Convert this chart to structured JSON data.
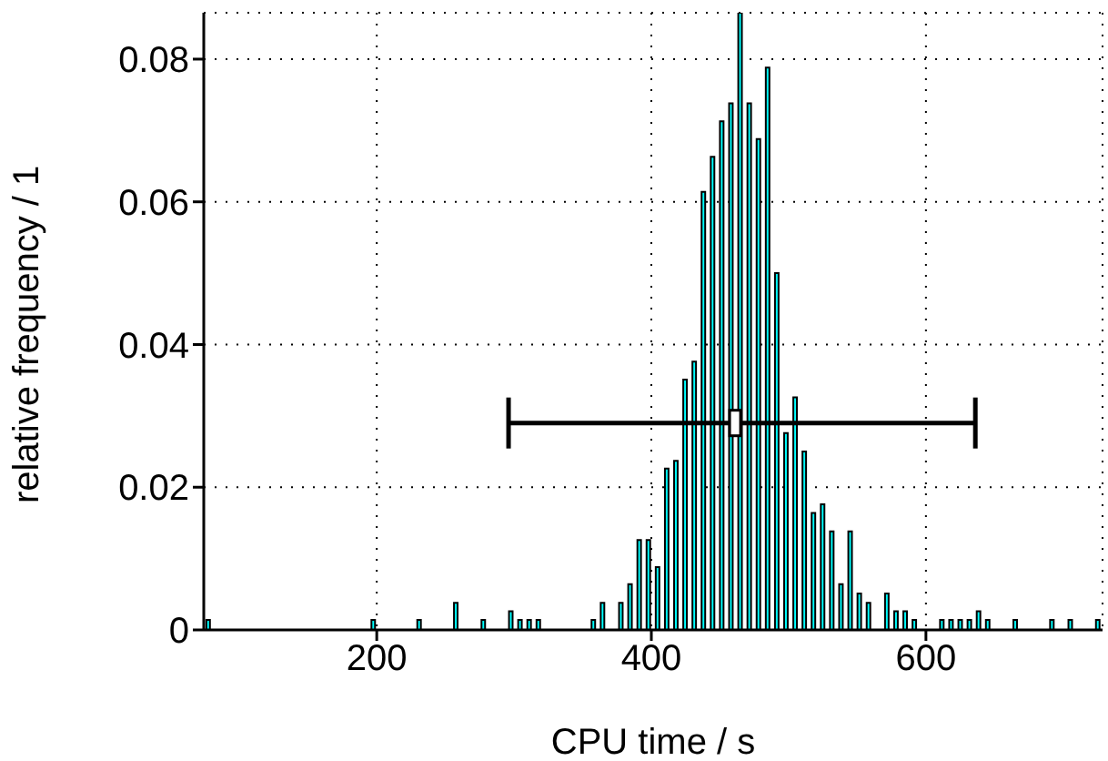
{
  "chart_data": {
    "type": "histogram",
    "xlabel": "CPU time / s",
    "ylabel": "relative frequency / 1",
    "bins": [
      74,
      80.68,
      87.36,
      94.04,
      100.72,
      107.4,
      114.08,
      120.76,
      127.44,
      134.12,
      140.8,
      147.48,
      154.16,
      160.84,
      167.52,
      174.2,
      180.88,
      187.56,
      194.24,
      200.92,
      207.6,
      214.28,
      220.96,
      227.64,
      234.32,
      241,
      247.68,
      254.36,
      261.04,
      267.72,
      274.4,
      281.08,
      287.76,
      294.44,
      301.12,
      307.8,
      314.48,
      321.16,
      327.84,
      334.52,
      341.2,
      347.88,
      354.56,
      361.24,
      367.92,
      374.6,
      381.28,
      387.96,
      394.64,
      401.32,
      408,
      414.68,
      421.36,
      428.04,
      434.72,
      441.4,
      448.08,
      454.76,
      461.44,
      468.12,
      474.8,
      481.48,
      488.16,
      494.84,
      501.52,
      508.2,
      514.88,
      521.56,
      528.24,
      534.92,
      541.6,
      548.28,
      554.96,
      561.64,
      568.32,
      575,
      581.68,
      588.36,
      595.04,
      601.72,
      608.4,
      615.08,
      621.76,
      628.44,
      635.12,
      641.8,
      648.48,
      655.16,
      661.84,
      668.52,
      675.2,
      681.88,
      688.56,
      695.24,
      701.92,
      708.6,
      715.28,
      721.96,
      728.64
    ],
    "values": [
      0.0014,
      0,
      0,
      0,
      0,
      0,
      0,
      0,
      0,
      0,
      0,
      0,
      0,
      0,
      0,
      0,
      0,
      0,
      0.0014,
      0,
      0,
      0,
      0,
      0.0014,
      0,
      0,
      0,
      0.0038,
      0,
      0,
      0.0014,
      0,
      0,
      0.0026,
      0.0014,
      0.0014,
      0.0014,
      0,
      0,
      0,
      0,
      0,
      0.0014,
      0.0038,
      0,
      0.0038,
      0.0064,
      0.0126,
      0.0126,
      0.0088,
      0.0226,
      0.0237,
      0.0351,
      0.0376,
      0.0614,
      0.0663,
      0.0713,
      0.0738,
      0.0865,
      0.0738,
      0.0688,
      0.0788,
      0.05,
      0.0276,
      0.0326,
      0.025,
      0.0164,
      0.0176,
      0.0138,
      0.0064,
      0.0138,
      0.0051,
      0.0038,
      0,
      0.0051,
      0.0026,
      0.0026,
      0.0014,
      0,
      0,
      0.0014,
      0.0014,
      0.0014,
      0.0014,
      0.0026,
      0.0014,
      0,
      0,
      0.0014,
      0,
      0,
      0,
      0.0014,
      0,
      0.0014,
      0,
      0,
      0.0014
    ],
    "color": "#00ffff",
    "series": [
      {
        "type": "scatter",
        "color": "#000000",
        "x": [
          461
        ],
        "values": [
          0.029
        ],
        "xerrors": [
          [
            296,
            636
          ]
        ],
        "marker": "square"
      }
    ],
    "xlim": [
      74,
      728.64
    ],
    "xticks": [
      200,
      400,
      600
    ],
    "ylim": [
      0,
      0.0865
    ],
    "yticks": [
      0,
      0.02,
      0.04,
      0.06,
      0.08
    ],
    "grid": true,
    "line_style": "dotted"
  }
}
